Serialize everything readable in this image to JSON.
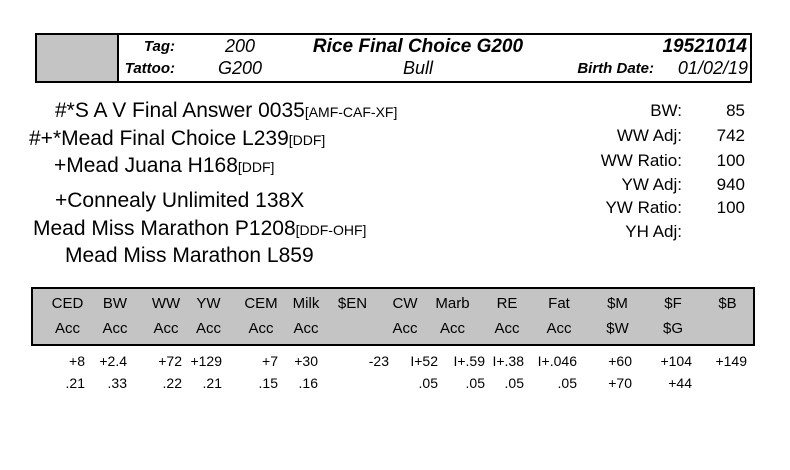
{
  "id_box": {
    "tag_label": "Tag:",
    "tag_value": "200",
    "tattoo_label": "Tattoo:",
    "tattoo_value": "G200",
    "name": "Rice Final Choice G200",
    "sex": "Bull",
    "reg_number": "19521014",
    "birth_date_label": "Birth Date:",
    "birth_date_value": "01/02/19"
  },
  "pedigree": {
    "lines": [
      {
        "name": "#*S A V Final Answer 0035",
        "suffix": "[AMF-CAF-XF]"
      },
      {
        "name": "#+*Mead Final Choice L239",
        "suffix": "[DDF]"
      },
      {
        "name": "+Mead Juana H168",
        "suffix": "[DDF]"
      },
      {
        "name": "+Connealy Unlimited 138X",
        "suffix": ""
      },
      {
        "name": "Mead Miss Marathon P1208",
        "suffix": "[DDF-OHF]"
      },
      {
        "name": "Mead Miss Marathon L859",
        "suffix": ""
      }
    ]
  },
  "performance": {
    "rows": [
      {
        "label": "BW:",
        "value": "85"
      },
      {
        "label": "WW Adj:",
        "value": "742"
      },
      {
        "label": "WW Ratio:",
        "value": "100"
      },
      {
        "label": "YW Adj:",
        "value": "940"
      },
      {
        "label": "YW Ratio:",
        "value": "100"
      },
      {
        "label": "YH Adj:",
        "value": ""
      }
    ]
  },
  "epd_table": {
    "columns": [
      {
        "h1": "CED",
        "h2": "Acc",
        "v1": "+8",
        "v2": ".21"
      },
      {
        "h1": "BW",
        "h2": "Acc",
        "v1": "+2.4",
        "v2": ".33"
      },
      {
        "h1": "WW",
        "h2": "Acc",
        "v1": "+72",
        "v2": ".22"
      },
      {
        "h1": "YW",
        "h2": "Acc",
        "v1": "+129",
        "v2": ".21"
      },
      {
        "h1": "CEM",
        "h2": "Acc",
        "v1": "+7",
        "v2": ".15"
      },
      {
        "h1": "Milk",
        "h2": "Acc",
        "v1": "+30",
        "v2": ".16"
      },
      {
        "h1": "$EN",
        "h2": "",
        "v1": "-23",
        "v2": ""
      },
      {
        "h1": "CW",
        "h2": "Acc",
        "v1": "I+52",
        "v2": ".05"
      },
      {
        "h1": "Marb",
        "h2": "Acc",
        "v1": "I+.59",
        "v2": ".05"
      },
      {
        "h1": "RE",
        "h2": "Acc",
        "v1": "I+.38",
        "v2": ".05"
      },
      {
        "h1": "Fat",
        "h2": "Acc",
        "v1": "I+.046",
        "v2": ".05"
      },
      {
        "h1": "$M",
        "h2": "$W",
        "v1": "+60",
        "v2": "+70"
      },
      {
        "h1": "$F",
        "h2": "$G",
        "v1": "+104",
        "v2": "+44"
      },
      {
        "h1": "$B",
        "h2": "",
        "v1": "+149",
        "v2": ""
      }
    ]
  },
  "colors": {
    "box_gray": "#c4c4c4",
    "border_black": "#000000"
  }
}
